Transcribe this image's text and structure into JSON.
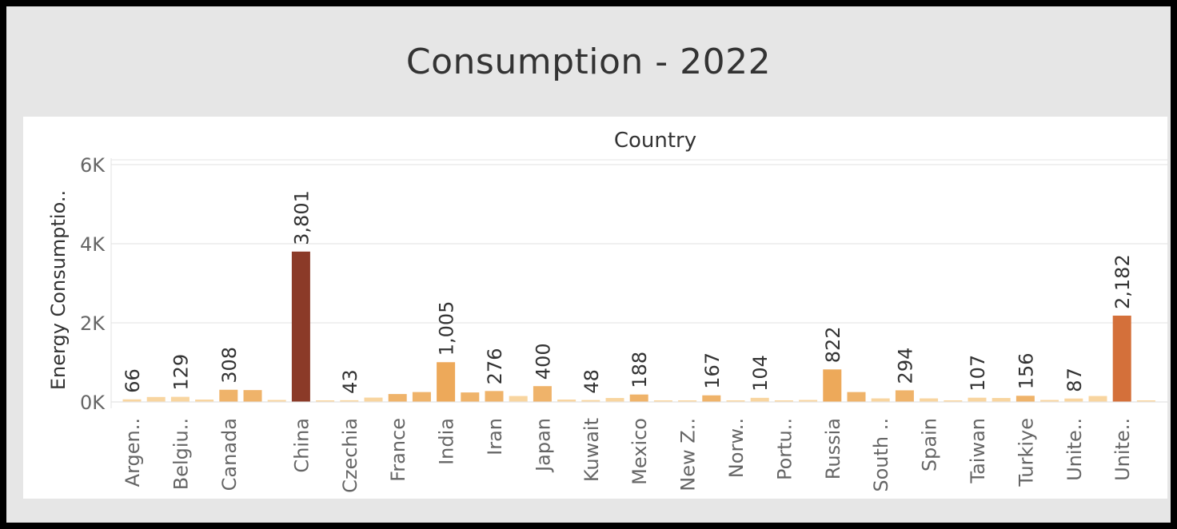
{
  "title": "Consumption - 2022",
  "chart_data": {
    "type": "bar",
    "header": "Country",
    "ylabel": "Energy Consumptio..",
    "ylim": [
      0,
      6000
    ],
    "yticks": [
      {
        "value": 0,
        "label": "0K"
      },
      {
        "value": 2000,
        "label": "2K"
      },
      {
        "value": 4000,
        "label": "4K"
      },
      {
        "value": 6000,
        "label": "6K"
      }
    ],
    "categories": [
      {
        "label": "Argen..",
        "value": 66,
        "data_label": "66"
      },
      {
        "label": "",
        "value": 125
      },
      {
        "label": "Belgiu..",
        "value": 129,
        "data_label": "129"
      },
      {
        "label": "",
        "value": 60
      },
      {
        "label": "Canada",
        "value": 308,
        "data_label": "308"
      },
      {
        "label": "",
        "value": 300
      },
      {
        "label": "",
        "value": 50
      },
      {
        "label": "China",
        "value": 3801,
        "data_label": "3,801"
      },
      {
        "label": "",
        "value": 40
      },
      {
        "label": "Czechia",
        "value": 43,
        "data_label": "43"
      },
      {
        "label": "",
        "value": 110
      },
      {
        "label": "France",
        "value": 200
      },
      {
        "label": "",
        "value": 250
      },
      {
        "label": "India",
        "value": 1005,
        "data_label": "1,005"
      },
      {
        "label": "",
        "value": 240
      },
      {
        "label": "Iran",
        "value": 276,
        "data_label": "276"
      },
      {
        "label": "",
        "value": 150
      },
      {
        "label": "Japan",
        "value": 400,
        "data_label": "400"
      },
      {
        "label": "",
        "value": 60
      },
      {
        "label": "Kuwait",
        "value": 48,
        "data_label": "48"
      },
      {
        "label": "",
        "value": 100
      },
      {
        "label": "Mexico",
        "value": 188,
        "data_label": "188"
      },
      {
        "label": "",
        "value": 30
      },
      {
        "label": "New Z..",
        "value": 10
      },
      {
        "label": "",
        "value": 167,
        "data_label": "167"
      },
      {
        "label": "Norw..",
        "value": 40
      },
      {
        "label": "",
        "value": 104,
        "data_label": "104"
      },
      {
        "label": "Portu..",
        "value": 10
      },
      {
        "label": "",
        "value": 50
      },
      {
        "label": "Russia",
        "value": 822,
        "data_label": "822"
      },
      {
        "label": "",
        "value": 250
      },
      {
        "label": "South ..",
        "value": 90
      },
      {
        "label": "",
        "value": 294,
        "data_label": "294"
      },
      {
        "label": "Spain",
        "value": 90
      },
      {
        "label": "",
        "value": 40
      },
      {
        "label": "Taiwan",
        "value": 107,
        "data_label": "107"
      },
      {
        "label": "",
        "value": 100
      },
      {
        "label": "Turkiye",
        "value": 156,
        "data_label": "156"
      },
      {
        "label": "",
        "value": 50
      },
      {
        "label": "Unite..",
        "value": 87,
        "data_label": "87"
      },
      {
        "label": "",
        "value": 150
      },
      {
        "label": "Unite..",
        "value": 2182,
        "data_label": "2,182"
      },
      {
        "label": "",
        "value": 30
      }
    ],
    "color_scale": [
      "#f8d5a0",
      "#eda95a",
      "#d4703a",
      "#8b3a28"
    ],
    "grid": true,
    "legend": "none"
  }
}
